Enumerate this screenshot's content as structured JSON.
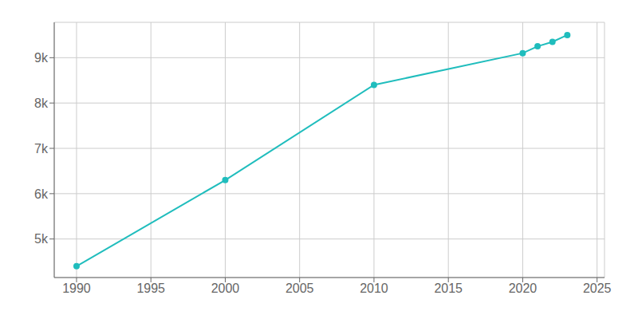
{
  "chart_data": {
    "type": "line",
    "x": [
      1990,
      2000,
      2010,
      2020,
      2021,
      2022,
      2023
    ],
    "values": [
      4400,
      6300,
      8400,
      9100,
      9250,
      9350,
      9500
    ],
    "color": "#20BDBD",
    "marker": "circle",
    "xlim": [
      1988.5,
      2025.5
    ],
    "ylim": [
      4150,
      9780
    ],
    "xticks": [
      1990,
      1995,
      2000,
      2005,
      2010,
      2015,
      2020,
      2025
    ],
    "yticks": [
      {
        "value": 5000,
        "label": "5k"
      },
      {
        "value": 6000,
        "label": "6k"
      },
      {
        "value": 7000,
        "label": "7k"
      },
      {
        "value": 8000,
        "label": "8k"
      },
      {
        "value": 9000,
        "label": "9k"
      }
    ],
    "grid": true
  }
}
